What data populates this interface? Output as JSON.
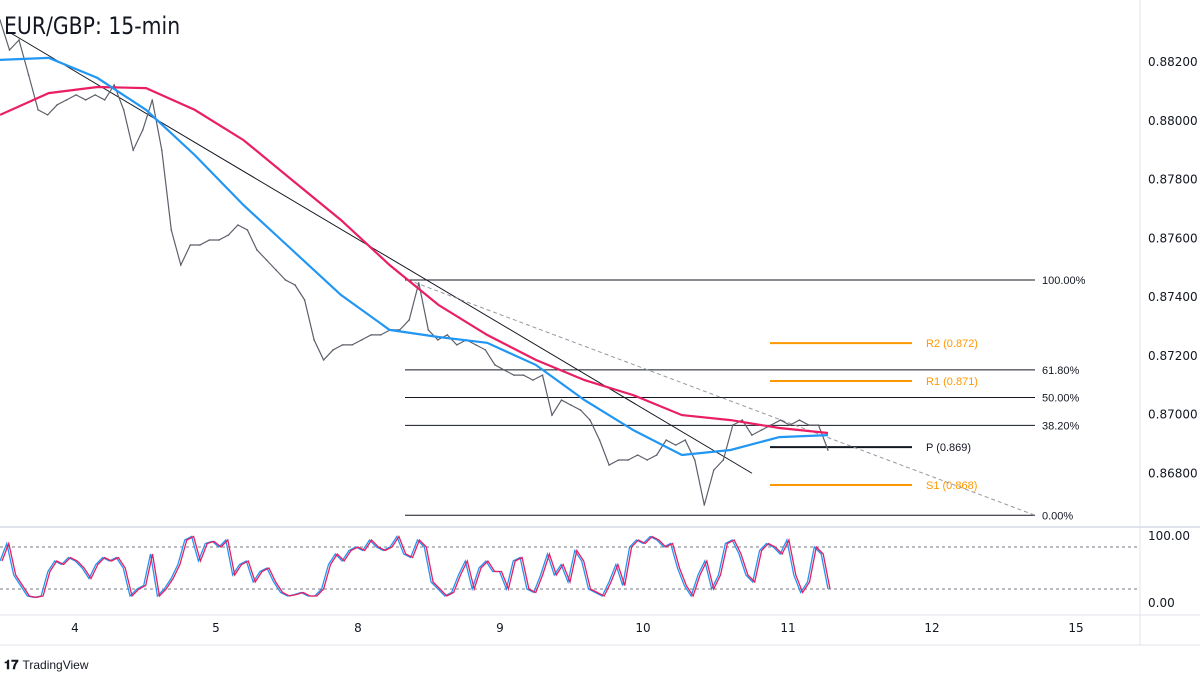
{
  "chart_data": {
    "type": "line",
    "title": "EUR/GBP: 15-min",
    "x_tick_labels": [
      "4",
      "5",
      "8",
      "9",
      "10",
      "11",
      "12",
      "15"
    ],
    "y_tick_labels": [
      "0.88200",
      "0.88000",
      "0.87800",
      "0.87600",
      "0.87400",
      "0.87200",
      "0.87000",
      "0.86800"
    ],
    "ylim": [
      0.866,
      0.8838
    ],
    "grid": false,
    "series": [
      {
        "role": "price",
        "color": "#5d606b",
        "values": [
          0.88343,
          0.88241,
          0.88275,
          0.88156,
          0.88037,
          0.8802,
          0.88054,
          0.88071,
          0.88088,
          0.88071,
          0.88088,
          0.88071,
          0.88122,
          0.88037,
          0.879,
          0.87969,
          0.88071,
          0.879,
          0.87628,
          0.87509,
          0.87577,
          0.87577,
          0.87594,
          0.87594,
          0.87611,
          0.87645,
          0.87628,
          0.8756,
          0.87526,
          0.87492,
          0.87458,
          0.87441,
          0.8739,
          0.87254,
          0.87186,
          0.8722,
          0.87237,
          0.87237,
          0.87254,
          0.87271,
          0.87271,
          0.87288,
          0.87288,
          0.87322,
          0.87448,
          0.87288,
          0.87254,
          0.87271,
          0.87237,
          0.87254,
          0.87237,
          0.8722,
          0.87169,
          0.87151,
          0.87134,
          0.87134,
          0.87117,
          0.87134,
          0.86998,
          0.87049,
          0.87032,
          0.87015,
          0.86981,
          0.86913,
          0.86828,
          0.86845,
          0.86845,
          0.86862,
          0.86845,
          0.86862,
          0.86913,
          0.86896,
          0.86913,
          0.86845,
          0.86692,
          0.86811,
          0.86845,
          0.86964,
          0.86981,
          0.8693,
          0.86947,
          0.86964,
          0.86981,
          0.86964,
          0.86981,
          0.86964,
          0.86964,
          0.86879
        ]
      },
      {
        "role": "ma-slow",
        "color": "#e91e63",
        "values": [
          0.8802,
          0.88094,
          0.88115,
          0.88111,
          0.88037,
          0.87934,
          0.87798,
          0.87662,
          0.87509,
          0.87373,
          0.87271,
          0.87186,
          0.87117,
          0.87066,
          0.86998,
          0.86981,
          0.86954,
          0.86937
        ]
      },
      {
        "role": "ma-fast",
        "color": "#2196f3",
        "values": [
          0.88207,
          0.88214,
          0.88146,
          0.88037,
          0.87883,
          0.87713,
          0.8756,
          0.87407,
          0.87288,
          0.87264,
          0.87244,
          0.87169,
          0.87049,
          0.86947,
          0.86862,
          0.86879,
          0.86923,
          0.8693
        ]
      }
    ],
    "fibonacci": {
      "color": "#131722",
      "levels": [
        {
          "label": "100.00%",
          "price": 0.87458
        },
        {
          "label": "61.80%",
          "price": 0.87152
        },
        {
          "label": "50.00%",
          "price": 0.87058
        },
        {
          "label": "38.20%",
          "price": 0.86963
        },
        {
          "label": "0.00%",
          "price": 0.86657
        }
      ]
    },
    "pivots": [
      {
        "label": "R2 (0.872)",
        "price": 0.87243,
        "color": "#ff9800"
      },
      {
        "label": "R1 (0.871)",
        "price": 0.87114,
        "color": "#ff9800"
      },
      {
        "label": "P (0.869)",
        "price": 0.86889,
        "color": "#131722"
      },
      {
        "label": "S1 (0.868)",
        "price": 0.8676,
        "color": "#ff9800"
      }
    ],
    "trendlines": [
      {
        "style": "solid",
        "color": "#131722",
        "from": 0.883,
        "to": 0.868
      },
      {
        "style": "dashed",
        "color": "#9598a1",
        "from": 0.87458,
        "to": 0.86657
      }
    ],
    "oscillator": {
      "y_tick_labels": [
        "100.00",
        "0.00"
      ],
      "ylim": [
        0,
        100
      ],
      "bands": [
        80,
        20
      ],
      "colors": [
        "#2196f3",
        "#e91e63"
      ],
      "values": [
        60,
        85,
        40,
        25,
        10,
        8,
        10,
        45,
        60,
        55,
        65,
        60,
        50,
        35,
        55,
        65,
        60,
        65,
        50,
        10,
        20,
        25,
        70,
        10,
        20,
        35,
        55,
        90,
        95,
        60,
        85,
        88,
        80,
        90,
        40,
        55,
        60,
        30,
        45,
        50,
        30,
        15,
        10,
        12,
        15,
        10,
        10,
        20,
        55,
        70,
        60,
        75,
        80,
        75,
        90,
        80,
        75,
        80,
        95,
        70,
        65,
        90,
        80,
        30,
        20,
        10,
        15,
        40,
        60,
        20,
        50,
        60,
        45,
        45,
        20,
        60,
        65,
        20,
        15,
        40,
        70,
        40,
        55,
        30,
        75,
        60,
        20,
        15,
        10,
        30,
        55,
        25,
        80,
        90,
        85,
        95,
        90,
        80,
        85,
        50,
        25,
        10,
        40,
        60,
        20,
        40,
        85,
        90,
        70,
        40,
        30,
        75,
        85,
        80,
        70,
        90,
        40,
        15,
        30,
        80,
        70,
        20
      ]
    }
  },
  "brand": {
    "name": "TradingView",
    "logo": "17"
  }
}
